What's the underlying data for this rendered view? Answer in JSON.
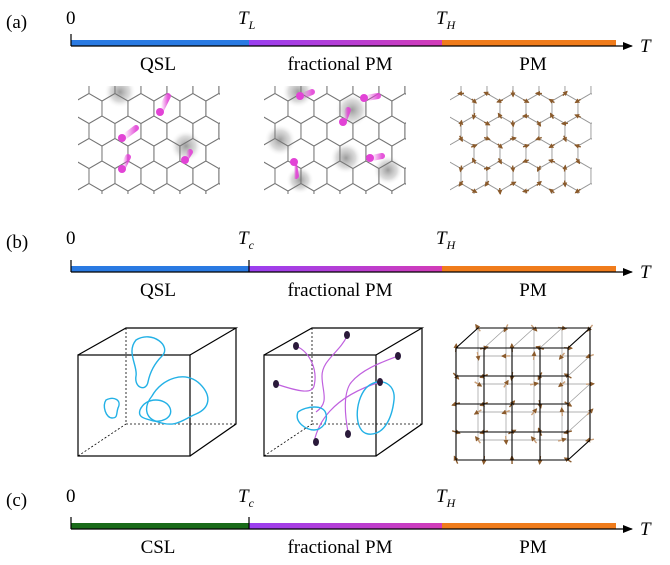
{
  "colors": {
    "qsl": "#2a7ae2",
    "csl": "#1a6b1a",
    "fractional": "#b93fe0",
    "fractional_start": "#9a3ff0",
    "fractional_end": "#d23cb8",
    "pm": "#f07c1c",
    "hex_line": "#777777",
    "spinon": "#e243d6",
    "loop": "#23b1e6",
    "string": "#c061df",
    "spin_arrow": "#8a5a2b"
  },
  "panels": [
    {
      "label": "(a)",
      "origin": "0",
      "low_transition": {
        "main": "T",
        "sub": "L"
      },
      "high_transition": {
        "main": "T",
        "sub": "H"
      },
      "axis_variable": "T",
      "phase_low": "QSL",
      "phase_mid": "fractional PM",
      "phase_high": "PM"
    },
    {
      "label": "(b)",
      "origin": "0",
      "low_transition": {
        "main": "T",
        "sub": "c"
      },
      "high_transition": {
        "main": "T",
        "sub": "H"
      },
      "axis_variable": "T",
      "phase_low": "QSL",
      "phase_mid": "fractional PM",
      "phase_high": "PM"
    },
    {
      "label": "(c)",
      "origin": "0",
      "low_transition": {
        "main": "T",
        "sub": "c"
      },
      "high_transition": {
        "main": "T",
        "sub": "H"
      },
      "axis_variable": "T",
      "phase_low": "CSL",
      "phase_mid": "fractional PM",
      "phase_high": "PM"
    }
  ]
}
